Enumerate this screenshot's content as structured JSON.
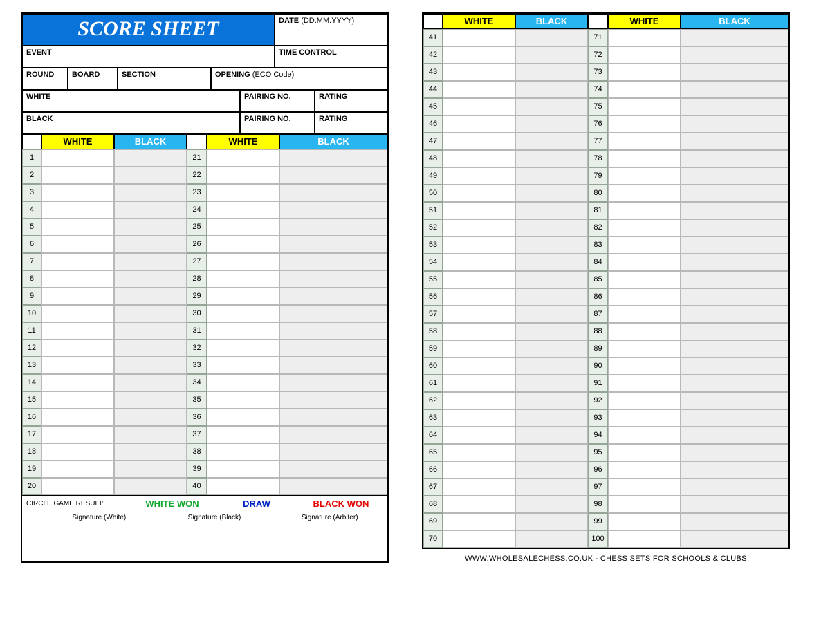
{
  "colors": {
    "title_bg": "#0a73d9",
    "title_fg": "#ffffff",
    "white_hdr_bg": "#ffff00",
    "white_hdr_fg": "#000000",
    "black_hdr_bg": "#29b6f0",
    "black_hdr_fg": "#ffffff",
    "num_cell_bg": "#e8eee8",
    "num_cell_border": "#95a595",
    "move_cell_border": "#b8b8b8",
    "black_move_bg": "#eeeeee",
    "white_won": "#11a82f",
    "draw": "#0024c4",
    "black_won": "#e40000"
  },
  "title": "SCORE SHEET",
  "labels": {
    "date": "DATE",
    "date_fmt": "(DD.MM.YYYY)",
    "event": "EVENT",
    "time_control": "TIME CONTROL",
    "round": "ROUND",
    "board": "BOARD",
    "section": "SECTION",
    "opening": "OPENING",
    "opening_sub": "(ECO Code)",
    "white": "WHITE",
    "black": "BLACK",
    "pairing": "PAIRING NO.",
    "rating": "RATING",
    "hdr_white": "WHITE",
    "hdr_black": "BLACK",
    "result_prompt": "CIRCLE GAME RESULT:",
    "white_won": "WHITE WON",
    "draw": "DRAW",
    "black_won": "BLACK WON",
    "sig_white": "Signature (White)",
    "sig_black": "Signature (Black)",
    "sig_arbiter": "Signature (Arbiter)"
  },
  "moves": {
    "left_start": 1,
    "left_end": 20,
    "left2_start": 21,
    "left2_end": 40,
    "right_start": 41,
    "right_end": 70,
    "right2_start": 71,
    "right2_end": 100
  },
  "footer": "WWW.WHOLESALECHESS.CO.UK - CHESS SETS FOR SCHOOLS & CLUBS"
}
